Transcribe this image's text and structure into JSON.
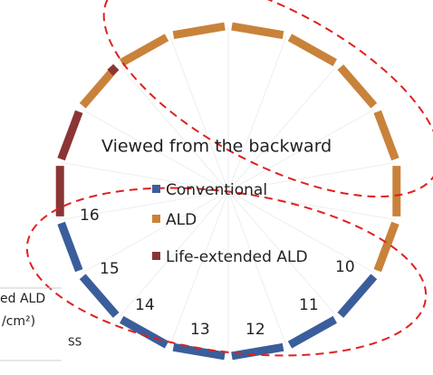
{
  "title": "Viewed from the backward",
  "legend": [
    {
      "name": "Conventional",
      "color": "#3a5e9b"
    },
    {
      "name": "ALD",
      "color": "#c9823a"
    },
    {
      "name": "Life-extended ALD",
      "color": "#8b3535"
    }
  ],
  "segment_labels": [
    "10",
    "11",
    "12",
    "13",
    "14",
    "15",
    "16"
  ],
  "side_texts": [
    "ed ALD",
    "/cm²)",
    "SS"
  ]
}
